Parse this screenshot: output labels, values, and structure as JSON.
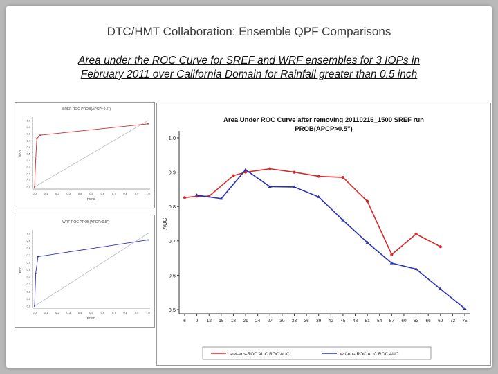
{
  "slide": {
    "title": "DTC/HMT Collaboration:  Ensemble QPF Comparisons",
    "subtitle_line1": "Area under the ROC Curve for SREF and WRF ensembles for 3 IOPs in",
    "subtitle_line2": "February 2011 over California Domain for Rainfall greater than 0.5 inch"
  },
  "colors": {
    "sref": "#d42a2a",
    "wrf": "#2a32b0",
    "diagonal": "#b8b8c8"
  },
  "chart_data": [
    {
      "type": "line",
      "title": "Area Under ROC Curve after removing 20110216_1500 SREF run",
      "subtitle": "PROB(APCP>0.5\")",
      "xlabel": "",
      "ylabel": "AUC",
      "ylim": [
        0.5,
        1.0
      ],
      "yticks": [
        "1.0",
        "0.9",
        "0.8",
        "0.7",
        "0.6",
        "0.5"
      ],
      "x": [
        6,
        9,
        12,
        15,
        18,
        21,
        24,
        27,
        30,
        33,
        36,
        39,
        42,
        45,
        48,
        51,
        54,
        57,
        60,
        63,
        66,
        69,
        72,
        75
      ],
      "xticks": [
        "6",
        "9",
        "12",
        "15",
        "18",
        "21",
        "24",
        "27",
        "30",
        "33",
        "36",
        "39",
        "42",
        "45",
        "48",
        "51",
        "54",
        "57",
        "60",
        "63",
        "66",
        "69",
        "72",
        "75"
      ],
      "series": [
        {
          "name": "sref-ens-ROC",
          "x": [
            6,
            9,
            12,
            18,
            21,
            27,
            33,
            39,
            45,
            51,
            57,
            63,
            69
          ],
          "values": [
            0.826,
            0.83,
            0.83,
            0.89,
            0.9,
            0.91,
            0.9,
            0.888,
            0.885,
            0.815,
            0.66,
            0.72,
            0.683
          ],
          "legend_label": "sref-ens-ROC  AUC  ROC  AUC"
        },
        {
          "name": "wrf-ens-ROC",
          "x": [
            9,
            15,
            21,
            27,
            33,
            39,
            45,
            51,
            57,
            63,
            69,
            75
          ],
          "values": [
            0.833,
            0.823,
            0.907,
            0.858,
            0.857,
            0.828,
            0.76,
            0.695,
            0.635,
            0.618,
            0.56,
            0.503
          ],
          "legend_label": "wrf-ens-ROC  AUC  ROC  AUC"
        }
      ],
      "legend_placement": "bottom",
      "grid": false
    },
    {
      "type": "line",
      "title": "SREF ROC PROB(APCP>0.5\")",
      "xlabel": "POFD",
      "ylabel": "POD",
      "xlim": [
        0,
        1
      ],
      "ylim": [
        0,
        1
      ],
      "xticks": [
        "0.0",
        "0.1",
        "0.2",
        "0.3",
        "0.4",
        "0.5",
        "0.6",
        "0.7",
        "0.8",
        "0.9",
        "1.0"
      ],
      "yticks": [
        "1.0",
        "0.9",
        "0.8",
        "0.7",
        "0.6",
        "0.5",
        "0.4",
        "0.3",
        "0.2",
        "0.1",
        "0.0"
      ],
      "series": [
        {
          "name": "SREF",
          "x": [
            0,
            0.01,
            0.02,
            0.05,
            1.0
          ],
          "values": [
            0,
            0.42,
            0.73,
            0.78,
            0.95
          ]
        },
        {
          "name": "no-skill",
          "x": [
            0,
            1
          ],
          "values": [
            0,
            1
          ]
        }
      ]
    },
    {
      "type": "line",
      "title": "WRF ROC PROB(APCP>0.5\")",
      "xlabel": "POFD",
      "ylabel": "POD",
      "xlim": [
        0,
        1
      ],
      "ylim": [
        0,
        1
      ],
      "xticks": [
        "0.0",
        "0.1",
        "0.2",
        "0.3",
        "0.4",
        "0.5",
        "0.6",
        "0.7",
        "0.8",
        "0.9",
        "1.0"
      ],
      "yticks": [
        "1.0",
        "0.9",
        "0.8",
        "0.7",
        "0.6",
        "0.5",
        "0.4",
        "0.3",
        "0.2",
        "0.1",
        "0.0"
      ],
      "series": [
        {
          "name": "WRF",
          "x": [
            0,
            0.01,
            0.03,
            1.0
          ],
          "values": [
            0,
            0.45,
            0.68,
            0.91
          ]
        },
        {
          "name": "no-skill",
          "x": [
            0,
            1
          ],
          "values": [
            0,
            1
          ]
        }
      ]
    }
  ]
}
